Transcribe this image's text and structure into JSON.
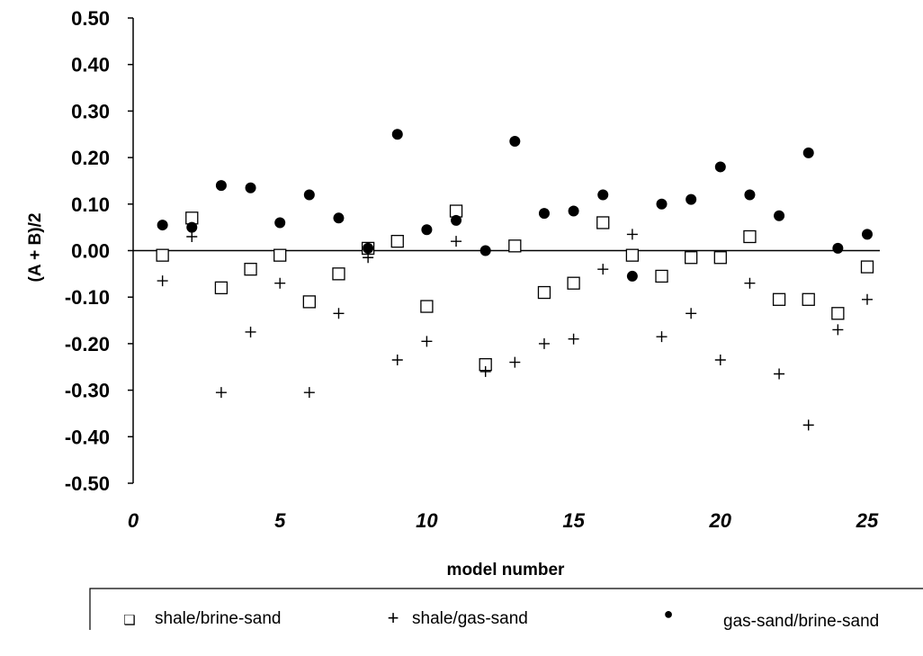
{
  "chart_data": {
    "type": "scatter",
    "title": "",
    "xlabel": "model number",
    "ylabel": "(A + B)/2",
    "xlim": [
      0,
      25
    ],
    "ylim": [
      -0.5,
      0.5
    ],
    "x_ticks": [
      0,
      5,
      10,
      15,
      20,
      25
    ],
    "x_tick_labels": [
      "0",
      "5",
      "10",
      "15",
      "20",
      "25"
    ],
    "y_ticks": [
      0.5,
      0.4,
      0.3,
      0.2,
      0.1,
      0.0,
      -0.1,
      -0.2,
      -0.3,
      -0.4,
      -0.5
    ],
    "y_tick_labels": [
      "0.50",
      "0.40",
      "0.30",
      "0.20",
      "0.10",
      "0.00",
      "-0.10",
      "-0.20",
      "-0.30",
      "-0.40",
      "-0.50"
    ],
    "grid": false,
    "zero_line": true,
    "legend_position": "bottom",
    "x": [
      1,
      2,
      3,
      4,
      5,
      6,
      7,
      8,
      9,
      10,
      11,
      12,
      13,
      14,
      15,
      16,
      17,
      18,
      19,
      20,
      21,
      22,
      23,
      24,
      25
    ],
    "series": [
      {
        "name": "shale/brine-sand",
        "marker": "open-square",
        "values": [
          -0.01,
          0.07,
          -0.08,
          -0.04,
          -0.01,
          -0.11,
          -0.05,
          0.005,
          0.02,
          -0.12,
          0.085,
          -0.245,
          0.01,
          -0.09,
          -0.07,
          0.06,
          -0.01,
          -0.055,
          -0.015,
          -0.015,
          0.03,
          -0.105,
          -0.105,
          -0.135,
          -0.035
        ]
      },
      {
        "name": "shale/gas-sand",
        "marker": "plus",
        "values": [
          -0.065,
          0.03,
          -0.305,
          -0.175,
          -0.07,
          -0.305,
          -0.135,
          -0.015,
          -0.235,
          -0.195,
          0.02,
          -0.26,
          -0.24,
          -0.2,
          -0.19,
          -0.04,
          0.035,
          -0.185,
          -0.135,
          -0.235,
          -0.07,
          -0.265,
          -0.375,
          -0.17,
          -0.105
        ]
      },
      {
        "name": "gas-sand/brine-sand",
        "marker": "filled-circle",
        "values": [
          0.055,
          0.05,
          0.14,
          0.135,
          0.06,
          0.12,
          0.07,
          0.005,
          0.25,
          0.045,
          0.065,
          0.0,
          0.235,
          0.08,
          0.085,
          0.12,
          -0.055,
          0.1,
          0.11,
          0.18,
          0.12,
          0.075,
          0.21,
          0.005,
          0.035
        ]
      }
    ],
    "legend": {
      "marker_glyphs": [
        "❑",
        "+",
        "●"
      ]
    }
  }
}
